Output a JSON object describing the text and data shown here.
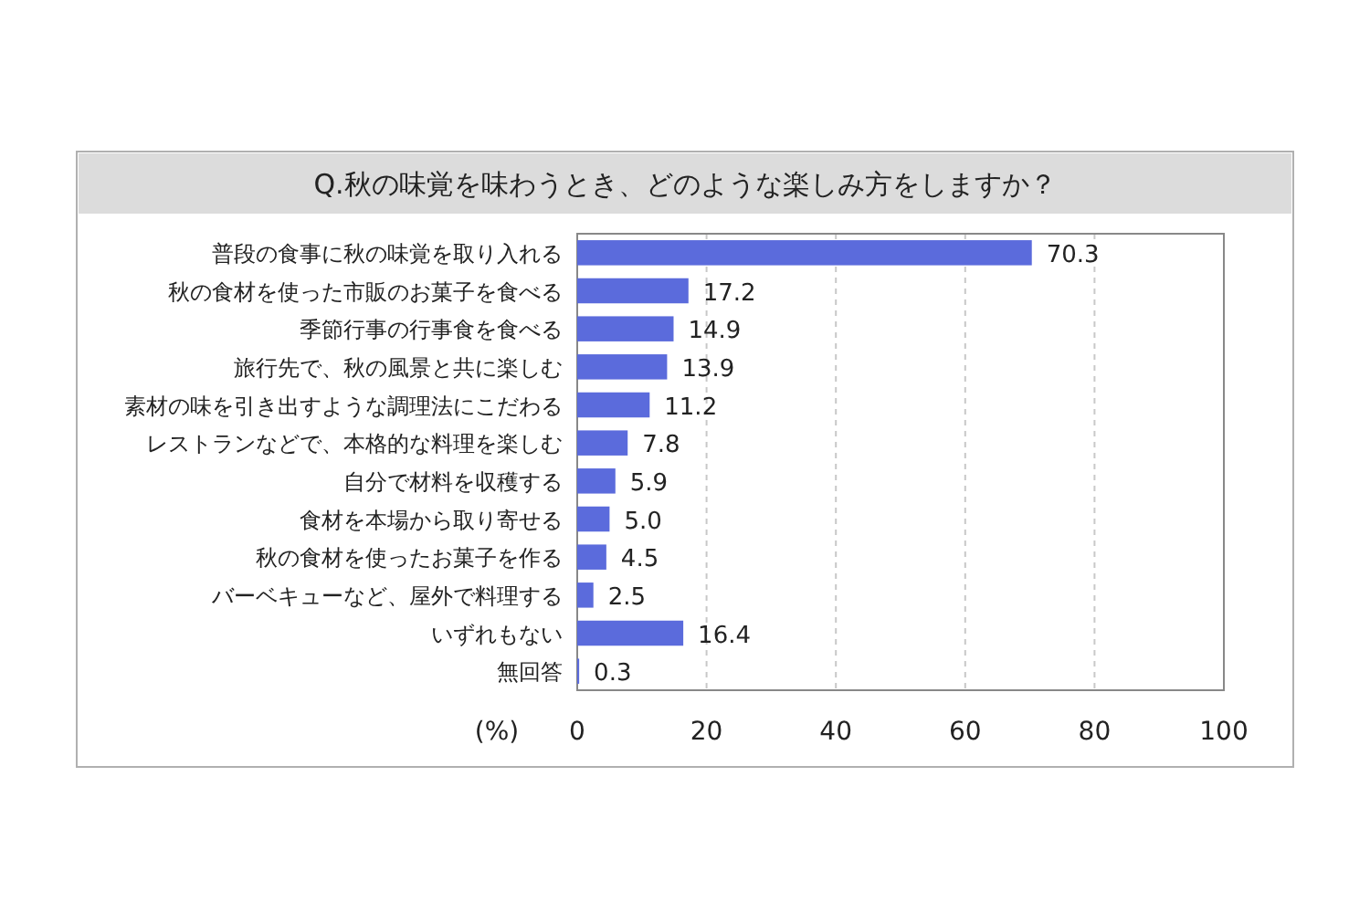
{
  "chart_data": {
    "type": "bar",
    "orientation": "horizontal",
    "title": "Q.秋の味覚を味わうとき、どのような楽しみ方をしますか？",
    "xlabel": "(%)",
    "categories": [
      "普段の食事に秋の味覚を取り入れる",
      "秋の食材を使った市販のお菓子を食べる",
      "季節行事の行事食を食べる",
      "旅行先で、秋の風景と共に楽しむ",
      "素材の味を引き出すような調理法にこだわる",
      "レストランなどで、本格的な料理を楽しむ",
      "自分で材料を収穫する",
      "食材を本場から取り寄せる",
      "秋の食材を使ったお菓子を作る",
      "バーベキューなど、屋外で料理する",
      "いずれもない",
      "無回答"
    ],
    "values": [
      70.3,
      17.2,
      14.9,
      13.9,
      11.2,
      7.8,
      5.9,
      5.0,
      4.5,
      2.5,
      16.4,
      0.3
    ],
    "value_labels": [
      "70.3",
      "17.2",
      "14.9",
      "13.9",
      "11.2",
      "7.8",
      "5.9",
      "5.0",
      "4.5",
      "2.5",
      "16.4",
      "0.3"
    ],
    "color": "#5b6bdc",
    "xlim": [
      0,
      100
    ],
    "xticks": [
      0,
      20,
      40,
      60,
      80,
      100
    ],
    "grid": "x"
  }
}
